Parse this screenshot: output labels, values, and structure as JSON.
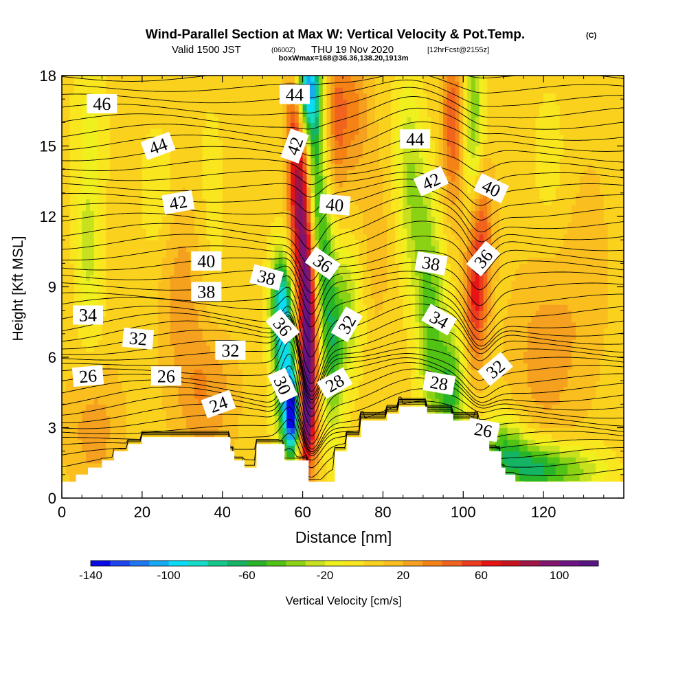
{
  "header": {
    "title": "Wind-Parallel Section at Max W: Vertical Velocity & Pot.Temp.",
    "title_mark": "(C)",
    "subtitle_left": "Valid 1500 JST",
    "subtitle_utc": "(0600Z)",
    "subtitle_right": "THU 19 Nov 2020",
    "subtitle_fcst": "[12hrFcst@2155z]",
    "box_info": "boxWmax=168@36.36,138.20,1913m"
  },
  "chart_data": {
    "type": "heatmap",
    "xlabel": "Distance [nm]",
    "ylabel": "Height [Kft MSL]",
    "xlim": [
      0,
      140
    ],
    "ylim": [
      0,
      18
    ],
    "x_ticks": [
      0,
      20,
      40,
      60,
      80,
      100,
      120
    ],
    "y_ticks": [
      0,
      3,
      6,
      9,
      12,
      15,
      18
    ],
    "colorbar": {
      "label": "Vertical Velocity [cm/s]",
      "range": [
        -140,
        120
      ],
      "ticks": [
        -140,
        -100,
        -60,
        -20,
        20,
        60,
        100
      ],
      "colors": [
        "#0a0ae6",
        "#1e46f0",
        "#1e78f0",
        "#14aaf5",
        "#0adcf5",
        "#14dcc8",
        "#14c88c",
        "#14b464",
        "#28b428",
        "#50c314",
        "#8cd214",
        "#c8e11e",
        "#f0f01e",
        "#fae61e",
        "#fad21e",
        "#fabe1e",
        "#f5a01e",
        "#f58214",
        "#f0641e",
        "#eb3c1e",
        "#e61414",
        "#c8141e",
        "#a01446",
        "#82146e",
        "#6e1482",
        "#5a1482"
      ]
    },
    "terrain": [
      {
        "x": 0,
        "z": 0.7
      },
      {
        "x": 3.5,
        "z": 0.7
      },
      {
        "x": 3.5,
        "z": 1.0
      },
      {
        "x": 6.5,
        "z": 1.0
      },
      {
        "x": 6.5,
        "z": 1.3
      },
      {
        "x": 10,
        "z": 1.3
      },
      {
        "x": 10,
        "z": 1.6
      },
      {
        "x": 13,
        "z": 1.6
      },
      {
        "x": 13,
        "z": 2.0
      },
      {
        "x": 16.5,
        "z": 2.0
      },
      {
        "x": 16.5,
        "z": 2.3
      },
      {
        "x": 20,
        "z": 2.3
      },
      {
        "x": 20,
        "z": 2.6
      },
      {
        "x": 42,
        "z": 2.6
      },
      {
        "x": 42,
        "z": 2.0
      },
      {
        "x": 43,
        "z": 2.0
      },
      {
        "x": 43,
        "z": 1.6
      },
      {
        "x": 45.5,
        "z": 1.6
      },
      {
        "x": 45.5,
        "z": 1.3
      },
      {
        "x": 48.5,
        "z": 1.3
      },
      {
        "x": 48.5,
        "z": 2.3
      },
      {
        "x": 55.5,
        "z": 2.3
      },
      {
        "x": 55.5,
        "z": 1.6
      },
      {
        "x": 61.5,
        "z": 1.6
      },
      {
        "x": 61.5,
        "z": 0.7
      },
      {
        "x": 68,
        "z": 0.7
      },
      {
        "x": 68,
        "z": 2.0
      },
      {
        "x": 71,
        "z": 2.0
      },
      {
        "x": 71,
        "z": 2.6
      },
      {
        "x": 74.5,
        "z": 2.6
      },
      {
        "x": 74.5,
        "z": 3.3
      },
      {
        "x": 81,
        "z": 3.3
      },
      {
        "x": 81,
        "z": 3.6
      },
      {
        "x": 84,
        "z": 3.6
      },
      {
        "x": 84,
        "z": 3.9
      },
      {
        "x": 91,
        "z": 3.9
      },
      {
        "x": 91,
        "z": 3.6
      },
      {
        "x": 97.5,
        "z": 3.6
      },
      {
        "x": 97.5,
        "z": 3.3
      },
      {
        "x": 104,
        "z": 3.3
      },
      {
        "x": 104,
        "z": 2.6
      },
      {
        "x": 106.5,
        "z": 2.6
      },
      {
        "x": 106.5,
        "z": 2.0
      },
      {
        "x": 109.5,
        "z": 2.0
      },
      {
        "x": 109.5,
        "z": 1.3
      },
      {
        "x": 110.5,
        "z": 1.3
      },
      {
        "x": 110.5,
        "z": 1.0
      },
      {
        "x": 113,
        "z": 1.0
      },
      {
        "x": 113,
        "z": 0.7
      },
      {
        "x": 140,
        "z": 0.7
      }
    ],
    "w_features": [
      {
        "x": 61.5,
        "z": 7.5,
        "sx": 1.6,
        "sz": 3.5,
        "w": 110
      },
      {
        "x": 60.5,
        "z": 3.6,
        "sx": 1.6,
        "sz": 1.5,
        "w": 70
      },
      {
        "x": 59.0,
        "z": 12.5,
        "sx": 1.8,
        "sz": 3.0,
        "w": 75
      },
      {
        "x": 58.0,
        "z": 16.5,
        "sx": 1.6,
        "sz": 1.8,
        "w": 35
      },
      {
        "x": 57.5,
        "z": 3.6,
        "sx": 1.4,
        "sz": 1.2,
        "w": -140
      },
      {
        "x": 55.5,
        "z": 6.0,
        "sx": 2.0,
        "sz": 2.5,
        "w": -85
      },
      {
        "x": 54.5,
        "z": 8.5,
        "sx": 2.0,
        "sz": 1.5,
        "w": -55
      },
      {
        "x": 63.0,
        "z": 13.5,
        "sx": 1.5,
        "sz": 3.5,
        "w": -60
      },
      {
        "x": 61.0,
        "z": 17.5,
        "sx": 2.0,
        "sz": 1.5,
        "w": -110
      },
      {
        "x": 65.5,
        "z": 10.0,
        "sx": 1.8,
        "sz": 2.5,
        "w": -45
      },
      {
        "x": 67.5,
        "z": 6.0,
        "sx": 2.0,
        "sz": 2.5,
        "w": -50
      },
      {
        "x": 71.5,
        "z": 8.0,
        "sx": 2.5,
        "sz": 2.0,
        "w": -35
      },
      {
        "x": 72.0,
        "z": 16.5,
        "sx": 3.0,
        "sz": 2.0,
        "w": 30
      },
      {
        "x": 68.5,
        "z": 16.0,
        "sx": 1.5,
        "sz": 2.5,
        "w": 25
      },
      {
        "x": 92.0,
        "z": 7.0,
        "sx": 2.5,
        "sz": 3.0,
        "w": -45
      },
      {
        "x": 97.0,
        "z": 4.5,
        "sx": 2.5,
        "sz": 2.0,
        "w": -55
      },
      {
        "x": 89.0,
        "z": 11.5,
        "sx": 3.0,
        "sz": 2.5,
        "w": -30
      },
      {
        "x": 86.0,
        "z": 15.0,
        "sx": 2.5,
        "sz": 2.5,
        "w": -25
      },
      {
        "x": 103.0,
        "z": 8.5,
        "sx": 2.0,
        "sz": 2.0,
        "w": 55
      },
      {
        "x": 104.5,
        "z": 12.0,
        "sx": 2.0,
        "sz": 2.0,
        "w": 40
      },
      {
        "x": 97.5,
        "z": 16.0,
        "sx": 2.0,
        "sz": 2.5,
        "w": 45
      },
      {
        "x": 102.5,
        "z": 16.0,
        "sx": 2.0,
        "sz": 3.0,
        "w": -45
      },
      {
        "x": 110.0,
        "z": 2.0,
        "sx": 4.0,
        "sz": 1.0,
        "w": -55
      },
      {
        "x": 118.0,
        "z": 1.3,
        "sx": 5.0,
        "sz": 0.8,
        "w": -60
      },
      {
        "x": 128.0,
        "z": 1.2,
        "sx": 6.0,
        "sz": 0.8,
        "w": -35
      },
      {
        "x": 7.0,
        "z": 15.5,
        "sx": 3.0,
        "sz": 2.5,
        "w": -20
      },
      {
        "x": 6.5,
        "z": 11.0,
        "sx": 2.0,
        "sz": 1.5,
        "w": -25
      },
      {
        "x": 7.0,
        "z": 8.0,
        "sx": 2.5,
        "sz": 2.0,
        "w": -15
      },
      {
        "x": 24.0,
        "z": 13.0,
        "sx": 3.0,
        "sz": 2.0,
        "w": -15
      },
      {
        "x": 30.0,
        "z": 9.0,
        "sx": 4.0,
        "sz": 3.0,
        "w": 20
      },
      {
        "x": 36.0,
        "z": 4.5,
        "sx": 5.0,
        "sz": 2.0,
        "w": 25
      },
      {
        "x": 8.0,
        "z": 3.0,
        "sx": 5.0,
        "sz": 2.0,
        "w": 20
      },
      {
        "x": 120.0,
        "z": 6.0,
        "sx": 6.0,
        "sz": 3.0,
        "w": 20
      },
      {
        "x": 130.0,
        "z": 10.0,
        "sx": 5.0,
        "sz": 4.0,
        "w": 10
      },
      {
        "x": 122.0,
        "z": 14.0,
        "sx": 4.0,
        "sz": 3.0,
        "w": -10
      },
      {
        "x": 37.0,
        "z": 12.0,
        "sx": 3.0,
        "sz": 4.0,
        "w": -10
      },
      {
        "x": 78.0,
        "z": 11.0,
        "sx": 3.0,
        "sz": 3.0,
        "w": 10
      }
    ],
    "contour_labels": [
      {
        "text": "46",
        "x": 10,
        "z": 16.8,
        "rot": 0
      },
      {
        "text": "44",
        "x": 58,
        "z": 17.2,
        "rot": 0
      },
      {
        "text": "44",
        "x": 24,
        "z": 15.0,
        "rot": -20
      },
      {
        "text": "42",
        "x": 58,
        "z": 15.0,
        "rot": -70
      },
      {
        "text": "44",
        "x": 88,
        "z": 15.3,
        "rot": 0
      },
      {
        "text": "42",
        "x": 92,
        "z": 13.5,
        "rot": -25
      },
      {
        "text": "40",
        "x": 107,
        "z": 13.2,
        "rot": 25
      },
      {
        "text": "42",
        "x": 29,
        "z": 12.6,
        "rot": -10
      },
      {
        "text": "40",
        "x": 68,
        "z": 12.5,
        "rot": 5
      },
      {
        "text": "40",
        "x": 36,
        "z": 10.1,
        "rot": 0
      },
      {
        "text": "36",
        "x": 65,
        "z": 10.0,
        "rot": 35
      },
      {
        "text": "38",
        "x": 92,
        "z": 10.0,
        "rot": 10
      },
      {
        "text": "36",
        "x": 105,
        "z": 10.2,
        "rot": -50
      },
      {
        "text": "38",
        "x": 51,
        "z": 9.4,
        "rot": 15
      },
      {
        "text": "38",
        "x": 36,
        "z": 8.8,
        "rot": 0
      },
      {
        "text": "34",
        "x": 6.5,
        "z": 7.8,
        "rot": 0
      },
      {
        "text": "36",
        "x": 55,
        "z": 7.3,
        "rot": 50
      },
      {
        "text": "32",
        "x": 71,
        "z": 7.4,
        "rot": -60
      },
      {
        "text": "34",
        "x": 94,
        "z": 7.6,
        "rot": 30
      },
      {
        "text": "32",
        "x": 19,
        "z": 6.8,
        "rot": 5
      },
      {
        "text": "32",
        "x": 42,
        "z": 6.3,
        "rot": 0
      },
      {
        "text": "32",
        "x": 108,
        "z": 5.5,
        "rot": -40
      },
      {
        "text": "26",
        "x": 6.5,
        "z": 5.2,
        "rot": -5
      },
      {
        "text": "26",
        "x": 26,
        "z": 5.2,
        "rot": 0
      },
      {
        "text": "30",
        "x": 55,
        "z": 4.8,
        "rot": 65
      },
      {
        "text": "28",
        "x": 68,
        "z": 4.9,
        "rot": -30
      },
      {
        "text": "28",
        "x": 94,
        "z": 4.9,
        "rot": 10
      },
      {
        "text": "24",
        "x": 39,
        "z": 4.0,
        "rot": -20
      },
      {
        "text": "26",
        "x": 105,
        "z": 2.9,
        "rot": 10
      }
    ]
  }
}
